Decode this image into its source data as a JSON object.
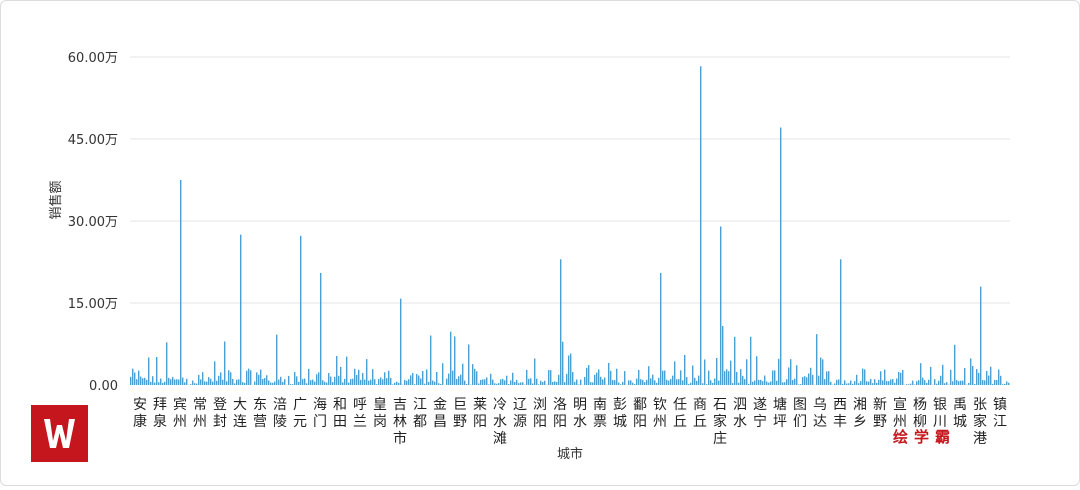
{
  "chart_data": {
    "type": "bar",
    "xlabel": "城市",
    "ylabel": "销售额",
    "yticks": [
      "0.00",
      "15.00万",
      "30.00万",
      "45.00万",
      "60.00万"
    ],
    "ylim": [
      0,
      600000
    ],
    "grid": true,
    "bar_color": "#4a9fd5",
    "categories": [
      "安康",
      "拜泉",
      "宾州",
      "常州",
      "登封",
      "大连",
      "东营",
      "涪陵",
      "广元",
      "海门",
      "和田",
      "呼兰",
      "皇岗",
      "吉林市",
      "江都",
      "金昌",
      "巨野",
      "莱阳",
      "冷水滩",
      "辽源",
      "浏阳",
      "洛阳",
      "明水",
      "南票",
      "彭城",
      "鄱阳",
      "钦州",
      "任丘",
      "商丘",
      "石家庄",
      "泗水",
      "遂宁",
      "塘坪",
      "图们",
      "乌达",
      "西丰",
      "湘乡",
      "新野",
      "宣州",
      "杨柳",
      "银川",
      "禹城",
      "张家港",
      "镇江"
    ],
    "peak_values": [
      {
        "city": "宾州",
        "value": 375000
      },
      {
        "city": "大连",
        "value": 275000
      },
      {
        "city": "广元",
        "value": 273000
      },
      {
        "city": "海门",
        "value": 205000
      },
      {
        "city": "吉林市",
        "value": 158000
      },
      {
        "city": "洛阳",
        "value": 230000
      },
      {
        "city": "钦州",
        "value": 205000
      },
      {
        "city": "商丘",
        "value": 583000
      },
      {
        "city": "石家庄",
        "value": 290000
      },
      {
        "city": "塘坪",
        "value": 471000
      },
      {
        "city": "西丰",
        "value": 230000
      },
      {
        "city": "张家港",
        "value": 180000
      }
    ]
  },
  "brand": {
    "logo_letter": "W",
    "watermark": "绘学霸"
  }
}
